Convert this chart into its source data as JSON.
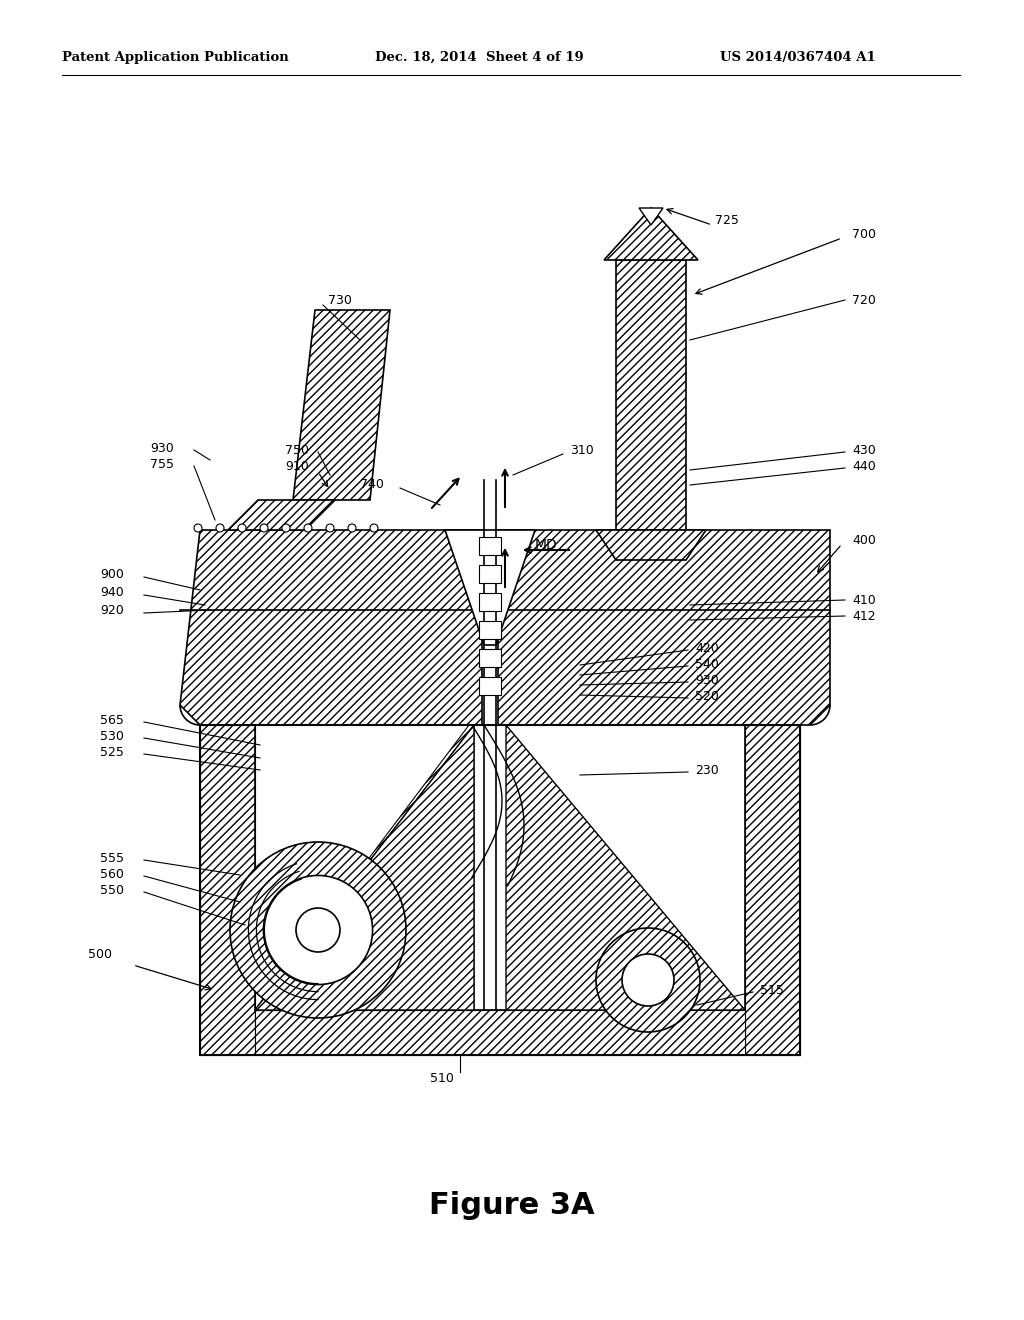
{
  "header_left": "Patent Application Publication",
  "header_mid": "Dec. 18, 2014  Sheet 4 of 19",
  "header_right": "US 2014/0367404 A1",
  "figure_label": "Figure 3A",
  "bg_color": "#ffffff"
}
